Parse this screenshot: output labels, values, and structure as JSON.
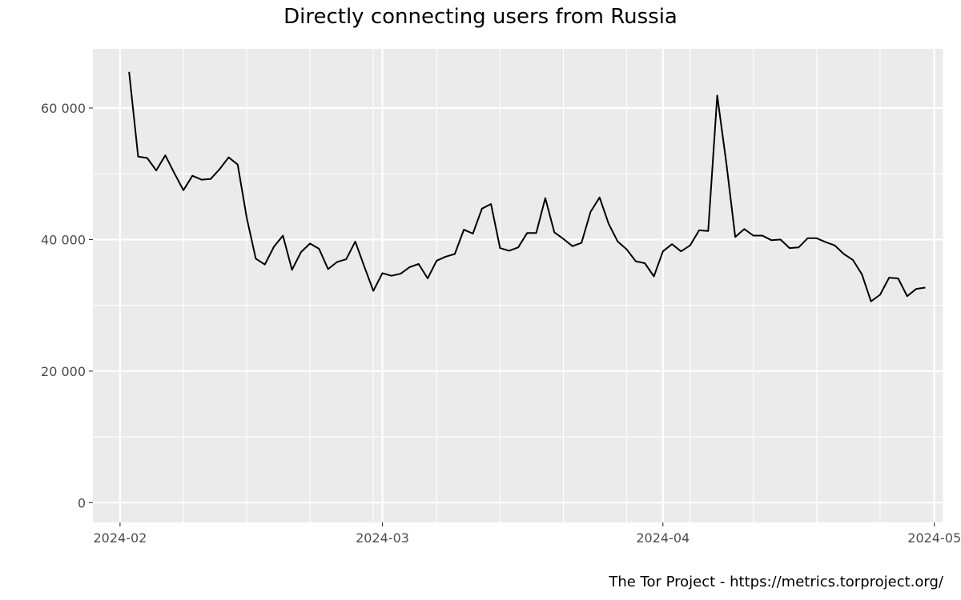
{
  "chart_data": {
    "type": "line",
    "title": "Directly connecting users from Russia",
    "caption": "The Tor Project - https://metrics.torproject.org/",
    "xlabel": "",
    "ylabel": "",
    "ylim": [
      -3000,
      69000
    ],
    "y_ticks": [
      {
        "value": 0,
        "label": "0"
      },
      {
        "value": 20000,
        "label": "20 000"
      },
      {
        "value": 40000,
        "label": "40 000"
      },
      {
        "value": 60000,
        "label": "60 000"
      }
    ],
    "x_range": [
      "2024-01-29",
      "2024-05-02"
    ],
    "x_ticks": [
      {
        "date": "2024-02-01",
        "label": "2024-02"
      },
      {
        "date": "2024-03-01",
        "label": "2024-03"
      },
      {
        "date": "2024-04-01",
        "label": "2024-04"
      },
      {
        "date": "2024-05-01",
        "label": "2024-05"
      }
    ],
    "grid": true,
    "colors": {
      "panel": "#ebebeb",
      "grid": "#ffffff",
      "line": "#000000",
      "tick_text": "#4d4d4d"
    },
    "series": [
      {
        "dates": [
          "2024-02-02",
          "2024-02-03",
          "2024-02-04",
          "2024-02-05",
          "2024-02-06",
          "2024-02-07",
          "2024-02-08",
          "2024-02-09",
          "2024-02-10",
          "2024-02-11",
          "2024-02-12",
          "2024-02-13",
          "2024-02-14",
          "2024-02-15",
          "2024-02-16",
          "2024-02-17",
          "2024-02-18",
          "2024-02-19",
          "2024-02-20",
          "2024-02-21",
          "2024-02-22",
          "2024-02-23",
          "2024-02-24",
          "2024-02-25",
          "2024-02-26",
          "2024-02-27",
          "2024-02-28",
          "2024-02-29",
          "2024-03-01",
          "2024-03-02",
          "2024-03-03",
          "2024-03-04",
          "2024-03-05",
          "2024-03-06",
          "2024-03-07",
          "2024-03-08",
          "2024-03-09",
          "2024-03-10",
          "2024-03-11",
          "2024-03-12",
          "2024-03-13",
          "2024-03-14",
          "2024-03-15",
          "2024-03-16",
          "2024-03-17",
          "2024-03-18",
          "2024-03-19",
          "2024-03-20",
          "2024-03-21",
          "2024-03-22",
          "2024-03-23",
          "2024-03-24",
          "2024-03-25",
          "2024-03-26",
          "2024-03-27",
          "2024-03-28",
          "2024-03-29",
          "2024-03-30",
          "2024-03-31",
          "2024-04-01",
          "2024-04-02",
          "2024-04-03",
          "2024-04-04",
          "2024-04-05",
          "2024-04-06",
          "2024-04-07",
          "2024-04-08",
          "2024-04-09",
          "2024-04-10",
          "2024-04-11",
          "2024-04-12",
          "2024-04-13",
          "2024-04-14",
          "2024-04-15",
          "2024-04-16",
          "2024-04-17",
          "2024-04-18",
          "2024-04-19",
          "2024-04-20",
          "2024-04-21",
          "2024-04-22",
          "2024-04-23",
          "2024-04-24",
          "2024-04-25",
          "2024-04-26",
          "2024-04-27",
          "2024-04-28",
          "2024-04-29",
          "2024-04-30"
        ],
        "values": [
          65500,
          52600,
          52400,
          50500,
          52800,
          50100,
          47500,
          49700,
          49100,
          49200,
          50700,
          52500,
          51400,
          43300,
          37100,
          36200,
          38900,
          40600,
          35400,
          38100,
          39400,
          38600,
          35500,
          36600,
          37000,
          39700,
          35900,
          32200,
          34900,
          34500,
          34800,
          35800,
          36300,
          34100,
          36800,
          37400,
          37800,
          41500,
          40900,
          44700,
          45400,
          38700,
          38300,
          38800,
          41000,
          41000,
          46300,
          41100,
          40100,
          39000,
          39500,
          44200,
          46400,
          42400,
          39700,
          38500,
          36700,
          36400,
          34400,
          38200,
          39300,
          38200,
          39100,
          41400,
          41300,
          61900,
          51700,
          40400,
          41600,
          40600,
          40600,
          39900,
          40000,
          38700,
          38800,
          40200,
          40200,
          39600,
          39100,
          37800,
          36900,
          34700,
          30600,
          31600,
          34200,
          34100,
          31400,
          32500,
          32700
        ]
      }
    ]
  }
}
